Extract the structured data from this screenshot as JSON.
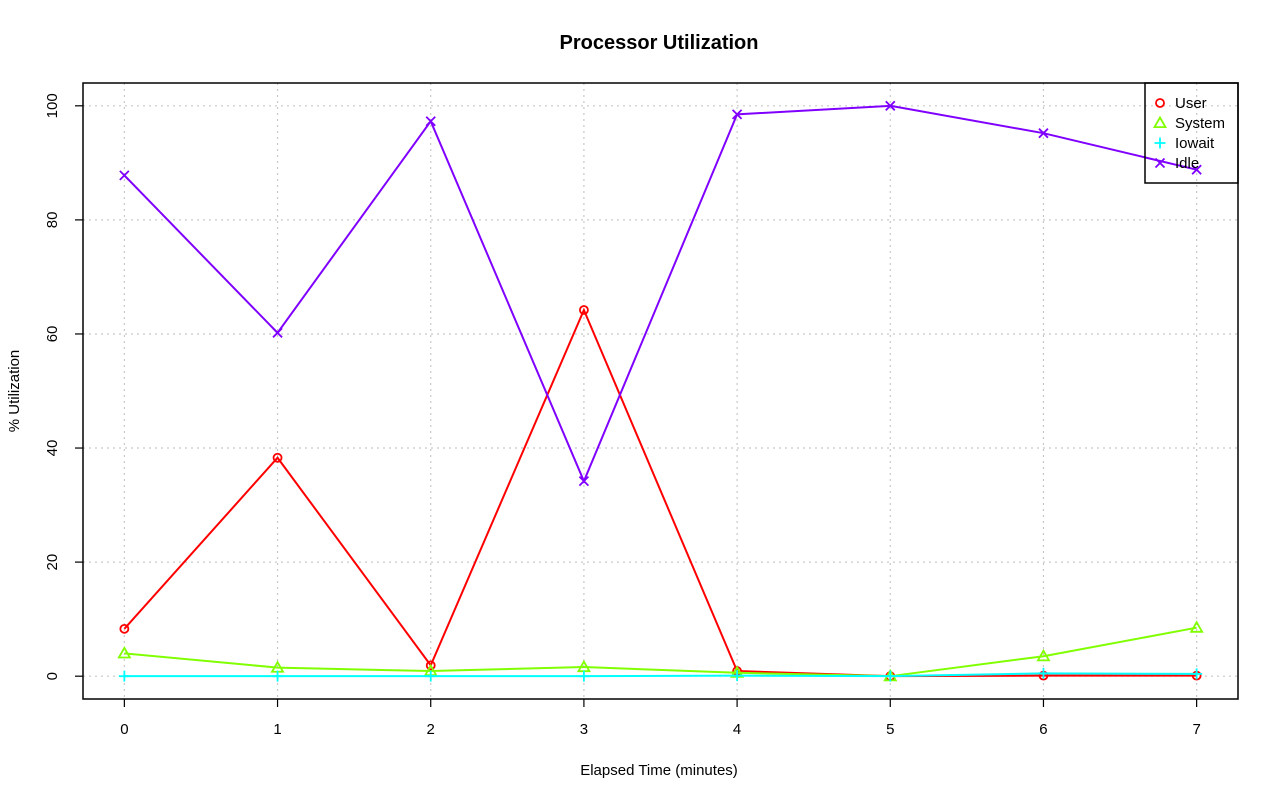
{
  "chart_data": {
    "type": "line",
    "title": "Processor Utilization",
    "xlabel": "Elapsed Time (minutes)",
    "ylabel": "% Utilization",
    "x": [
      0,
      1,
      2,
      3,
      4,
      5,
      6,
      7
    ],
    "x_ticks": [
      "0",
      "1",
      "2",
      "3",
      "4",
      "5",
      "6",
      "7"
    ],
    "y_ticks": [
      "0",
      "20",
      "40",
      "60",
      "80",
      "100"
    ],
    "xlim": [
      -0.27,
      7.27
    ],
    "ylim": [
      -4,
      104
    ],
    "grid": true,
    "legend_position": "top-right",
    "series": [
      {
        "name": "User",
        "color": "#ff0000",
        "marker": "circle",
        "values": [
          8.3,
          38.3,
          1.9,
          64.2,
          0.9,
          0.0,
          0.1,
          0.1
        ]
      },
      {
        "name": "System",
        "color": "#80ff00",
        "marker": "triangle",
        "values": [
          4.0,
          1.5,
          0.9,
          1.6,
          0.6,
          0.0,
          3.5,
          8.5
        ]
      },
      {
        "name": "Iowait",
        "color": "#00ffff",
        "marker": "plus",
        "values": [
          0.0,
          0.0,
          0.0,
          0.0,
          0.1,
          0.0,
          0.5,
          0.4
        ]
      },
      {
        "name": "Idle",
        "color": "#8000ff",
        "marker": "cross",
        "values": [
          87.8,
          60.2,
          97.3,
          34.2,
          98.5,
          100.0,
          95.2,
          88.8
        ]
      }
    ]
  }
}
